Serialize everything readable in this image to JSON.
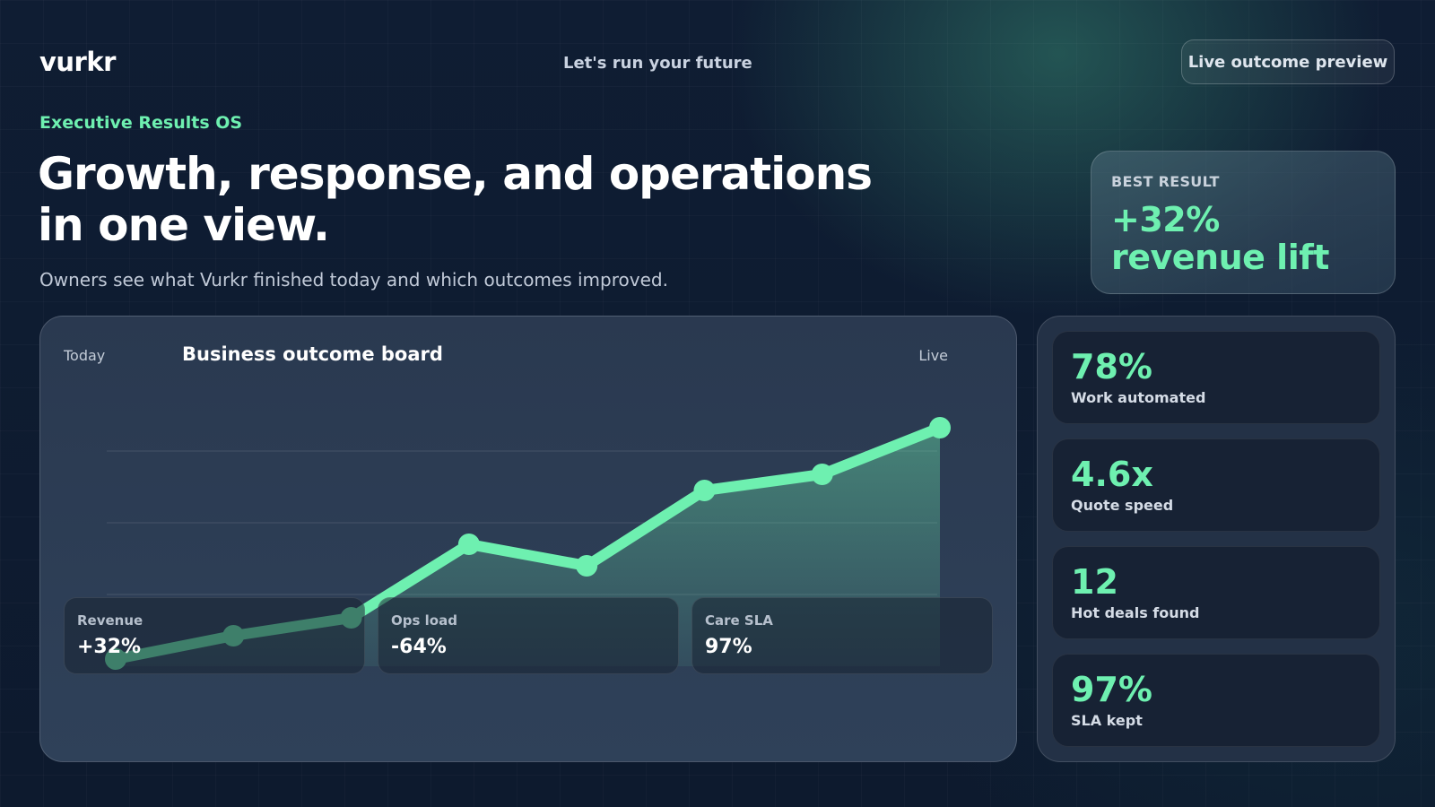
{
  "brand": {
    "logo": "vurkr",
    "tagline": "Let's run your future"
  },
  "header": {
    "preview_button": "Live outcome preview"
  },
  "hero": {
    "eyebrow": "Executive Results OS",
    "headline": "Growth, response, and operations in one view.",
    "subline": "Owners see what Vurkr finished today and which outcomes improved."
  },
  "best_result": {
    "label": "BEST RESULT",
    "value": "+32% revenue lift"
  },
  "board": {
    "period": "Today",
    "title": "Business outcome board",
    "status": "Live",
    "chart_data": {
      "type": "area",
      "x": [
        1,
        2,
        3,
        4,
        5,
        6,
        7,
        8
      ],
      "values": [
        4,
        17,
        27,
        68,
        56,
        98,
        107,
        133
      ],
      "ylim": [
        0,
        180
      ],
      "grid": true,
      "color": "#6ef0b0"
    },
    "tiles": [
      {
        "label": "Revenue",
        "value": "+32%"
      },
      {
        "label": "Ops load",
        "value": "-64%"
      },
      {
        "label": "Care SLA",
        "value": "97%"
      }
    ]
  },
  "metrics": [
    {
      "value": "78%",
      "label": "Work automated"
    },
    {
      "value": "4.6x",
      "label": "Quote speed"
    },
    {
      "value": "12",
      "label": "Hot deals found"
    },
    {
      "value": "97%",
      "label": "SLA kept"
    }
  ],
  "colors": {
    "accent": "#6ef0b0",
    "background": "#0f1d33",
    "panel": "#233146",
    "card": "#172234"
  }
}
